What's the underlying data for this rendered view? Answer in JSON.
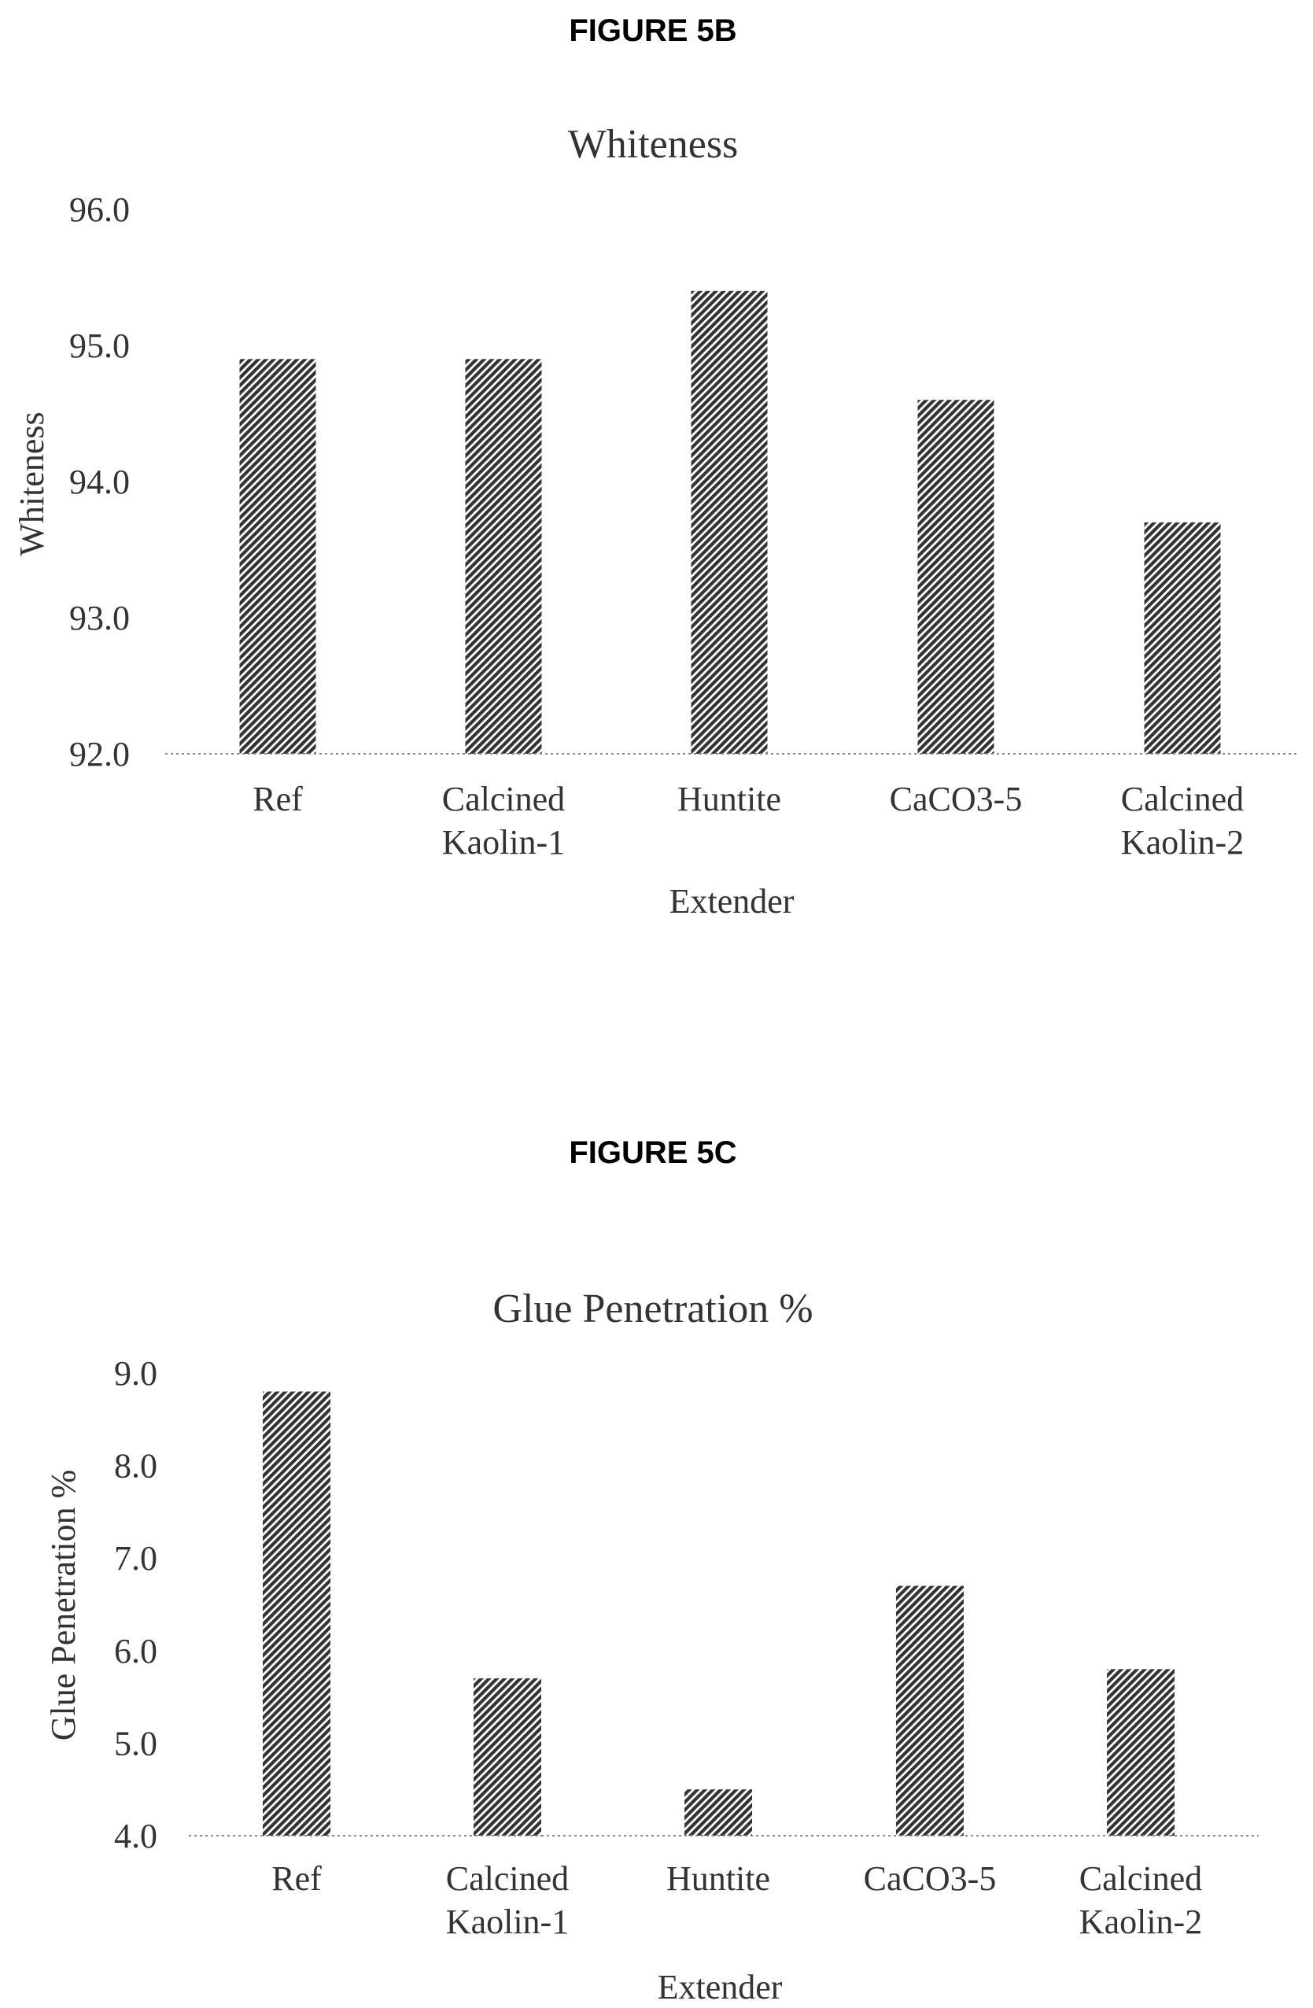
{
  "figures": [
    {
      "label": "FIGURE 5B"
    },
    {
      "label": "FIGURE 5C"
    }
  ],
  "chart_data": [
    {
      "type": "bar",
      "title": "Whiteness",
      "xlabel": "Extender",
      "ylabel": "Whiteness",
      "categories": [
        "Ref",
        "Calcined Kaolin-1",
        "Huntite",
        "CaCO3-5",
        "Calcined Kaolin-2"
      ],
      "category_lines": [
        [
          "Ref"
        ],
        [
          "Calcined",
          "Kaolin-1"
        ],
        [
          "Huntite"
        ],
        [
          "CaCO3-5"
        ],
        [
          "Calcined",
          "Kaolin-2"
        ]
      ],
      "values": [
        94.9,
        94.9,
        95.4,
        94.6,
        93.7
      ],
      "ylim": [
        92.0,
        96.0
      ],
      "yticks": [
        "92.0",
        "93.0",
        "94.0",
        "95.0",
        "96.0"
      ],
      "grid": false,
      "legend": "none",
      "bar_fill": "diagonal-hatch",
      "bar_color": "#333333"
    },
    {
      "type": "bar",
      "title": "Glue Penetration %",
      "xlabel": "Extender",
      "ylabel": "Glue Penetration %",
      "categories": [
        "Ref",
        "Calcined Kaolin-1",
        "Huntite",
        "CaCO3-5",
        "Calcined Kaolin-2"
      ],
      "category_lines": [
        [
          "Ref"
        ],
        [
          "Calcined",
          "Kaolin-1"
        ],
        [
          "Huntite"
        ],
        [
          "CaCO3-5"
        ],
        [
          "Calcined",
          "Kaolin-2"
        ]
      ],
      "values": [
        8.8,
        5.7,
        4.5,
        6.7,
        5.8
      ],
      "ylim": [
        4.0,
        9.0
      ],
      "yticks": [
        "4.0",
        "5.0",
        "6.0",
        "7.0",
        "8.0",
        "9.0"
      ],
      "grid": false,
      "legend": "none",
      "bar_fill": "diagonal-hatch",
      "bar_color": "#333333"
    }
  ]
}
